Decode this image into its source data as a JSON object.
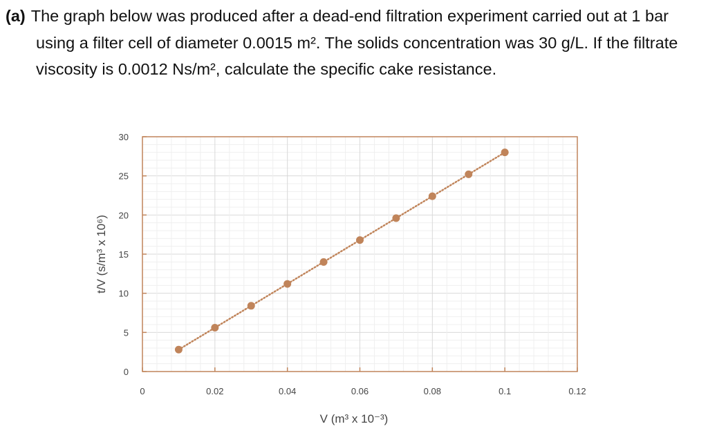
{
  "question": {
    "label": "(a)",
    "text": "The graph below was produced after a dead-end filtration experiment carried out at 1 bar using a filter cell of diameter 0.0015 m². The solids concentration was 30 g/L. If the filtrate viscosity is 0.0012 Ns/m², calculate the specific cake resistance."
  },
  "chart_data": {
    "type": "scatter",
    "title": "",
    "xlabel": "V (m³ x 10⁻³)",
    "ylabel": "t/V (s/m³ x 10⁶)",
    "xlim": [
      0,
      0.12
    ],
    "ylim": [
      0,
      30
    ],
    "xticks": [
      "0",
      "0.02",
      "0.04",
      "0.06",
      "0.08",
      "0.1",
      "0.12"
    ],
    "yticks": [
      "0",
      "5",
      "10",
      "15",
      "20",
      "25",
      "30"
    ],
    "grid": true,
    "trendline": "linear, dotted",
    "x": [
      0.01,
      0.02,
      0.03,
      0.04,
      0.05,
      0.06,
      0.07,
      0.08,
      0.09,
      0.1
    ],
    "y": [
      2.8,
      5.6,
      8.4,
      11.2,
      14.0,
      16.8,
      19.6,
      22.4,
      25.2,
      28.0
    ],
    "colors": {
      "marker": "#c0845a",
      "axis": "#c0845a",
      "trendline": "#c0845a"
    }
  }
}
